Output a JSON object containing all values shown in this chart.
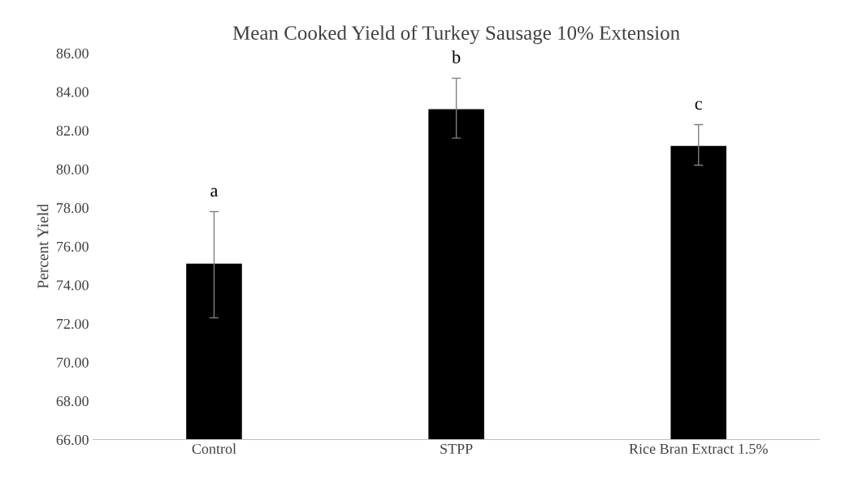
{
  "chart_data": {
    "type": "bar",
    "title": "Mean Cooked Yield of Turkey Sausage 10% Extension",
    "ylabel": "Percent Yield",
    "categories": [
      "Control",
      "STPP",
      "Rice Bran Extract 1.5%"
    ],
    "values": [
      75.1,
      83.1,
      81.2
    ],
    "color": "#000000",
    "errors": [
      [
        72.3,
        77.8
      ],
      [
        81.6,
        84.7
      ],
      [
        80.2,
        82.3
      ]
    ],
    "ylim": [
      66,
      86
    ],
    "yticks": [
      {
        "value": 66,
        "label": "66.00"
      },
      {
        "value": 68,
        "label": "68.00"
      },
      {
        "value": 70,
        "label": "70.00"
      },
      {
        "value": 72,
        "label": "72.00"
      },
      {
        "value": 74,
        "label": "74.00"
      },
      {
        "value": 76,
        "label": "76.00"
      },
      {
        "value": 78,
        "label": "78.00"
      },
      {
        "value": 80,
        "label": "80.00"
      },
      {
        "value": 82,
        "label": "82.00"
      },
      {
        "value": 84,
        "label": "84.00"
      },
      {
        "value": 86,
        "label": "86.00"
      }
    ],
    "annotations": [
      "a",
      "b",
      "c"
    ],
    "grid": false,
    "legend": false
  }
}
